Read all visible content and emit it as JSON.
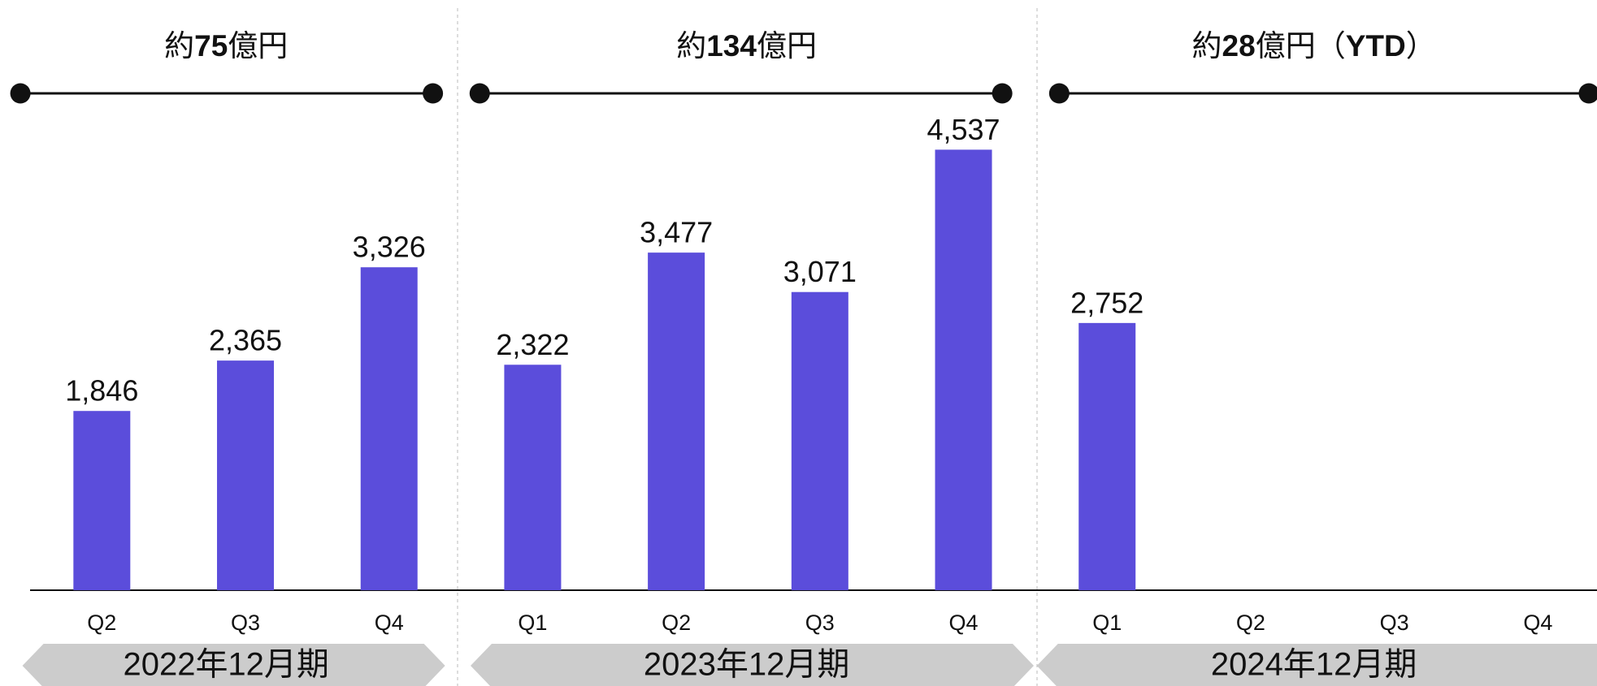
{
  "chart_data": {
    "type": "bar",
    "color": "#5b4ddb",
    "groups": [
      {
        "label": "2022年12月期",
        "total_parts": [
          "約",
          "75",
          "億円"
        ],
        "categories": [
          "Q2",
          "Q3",
          "Q4"
        ],
        "values": [
          1846,
          2365,
          3326
        ],
        "value_labels": [
          "1,846",
          "2,365",
          "3,326"
        ]
      },
      {
        "label": "2023年12月期",
        "total_parts": [
          "約",
          "134",
          "億円"
        ],
        "categories": [
          "Q1",
          "Q2",
          "Q3",
          "Q4"
        ],
        "values": [
          2322,
          3477,
          3071,
          4537
        ],
        "value_labels": [
          "2,322",
          "3,477",
          "3,071",
          "4,537"
        ]
      },
      {
        "label": "2024年12月期",
        "total_parts": [
          "約",
          "28",
          "億円（",
          "YTD",
          "）"
        ],
        "categories": [
          "Q1",
          "Q2",
          "Q3",
          "Q4"
        ],
        "values": [
          2752,
          null,
          null,
          null
        ],
        "value_labels": [
          "2,752",
          null,
          null,
          null
        ]
      }
    ]
  }
}
